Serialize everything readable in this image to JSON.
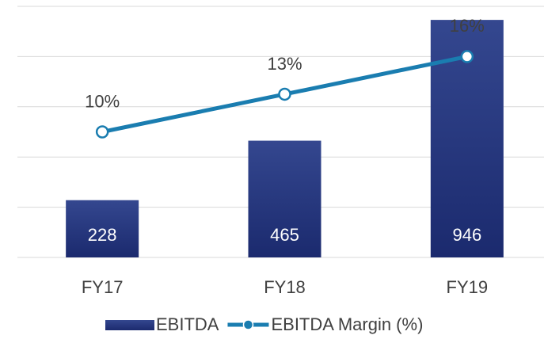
{
  "chart_data": {
    "type": "bar-line",
    "categories": [
      "FY17",
      "FY18",
      "FY19"
    ],
    "series": [
      {
        "name": "EBITDA",
        "color": "#22337a",
        "values": [
          228,
          465,
          946
        ]
      },
      {
        "name": "EBITDA Margin (%)",
        "color": "#1a7db0",
        "axis": "y2",
        "values": [
          10,
          13,
          16
        ],
        "value_labels": [
          "10%",
          "13%",
          "16%"
        ]
      }
    ],
    "ylim": [
      0,
      1000
    ],
    "yticks": [
      0,
      200,
      400,
      600,
      800,
      1000
    ],
    "y2lim": [
      0,
      20
    ],
    "grid": true
  }
}
